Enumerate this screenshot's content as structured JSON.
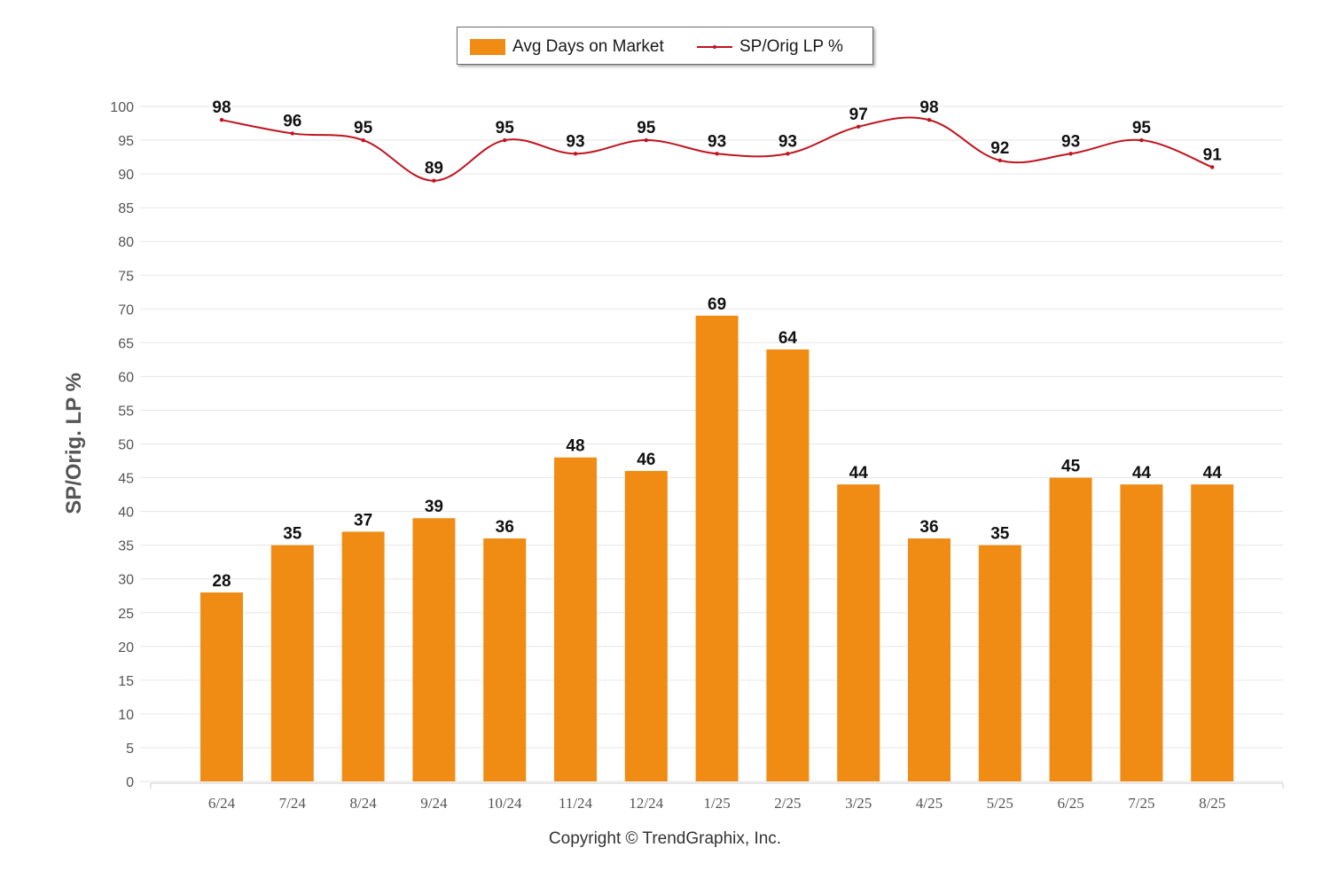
{
  "legend": {
    "bar_label": "Avg Days on Market",
    "line_label": "SP/Orig LP %"
  },
  "colors": {
    "bar": "#F08C14",
    "line": "#C0141E",
    "grid": "#e6e6e6",
    "tick_text": "#555555"
  },
  "footer": {
    "copyright": "Copyright © TrendGraphix, Inc."
  },
  "chart_data": {
    "type": "bar",
    "categories": [
      "6/24",
      "7/24",
      "8/24",
      "9/24",
      "10/24",
      "11/24",
      "12/24",
      "1/25",
      "2/25",
      "3/25",
      "4/25",
      "5/25",
      "6/25",
      "7/25",
      "8/25"
    ],
    "series": [
      {
        "name": "Avg Days on Market",
        "type": "bar",
        "values": [
          28,
          35,
          37,
          39,
          36,
          48,
          46,
          69,
          64,
          44,
          36,
          35,
          45,
          44,
          44
        ]
      },
      {
        "name": "SP/Orig LP %",
        "type": "line",
        "values": [
          98,
          96,
          95,
          89,
          95,
          93,
          95,
          93,
          93,
          97,
          98,
          92,
          93,
          95,
          91
        ]
      }
    ],
    "ylabel": "SP/Orig. LP %",
    "ylim": [
      0,
      100
    ],
    "yticks": [
      0,
      5,
      10,
      15,
      20,
      25,
      30,
      35,
      40,
      45,
      50,
      55,
      60,
      65,
      70,
      75,
      80,
      85,
      90,
      95,
      100
    ],
    "grid": true,
    "legend_position": "top-center",
    "data_labels": true
  }
}
